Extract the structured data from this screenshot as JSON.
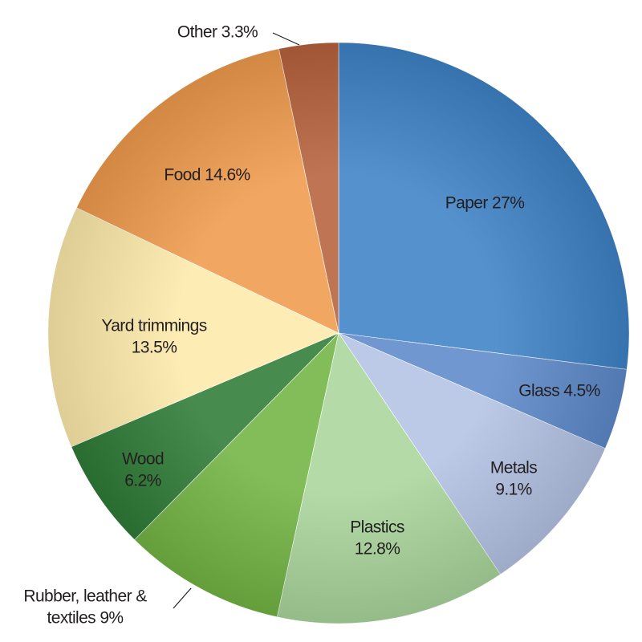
{
  "chart_data": {
    "type": "pie",
    "categories": [
      "Paper",
      "Glass",
      "Metals",
      "Plastics",
      "Rubber, leather & textiles",
      "Wood",
      "Yard trimmings",
      "Food",
      "Other"
    ],
    "values": [
      27,
      4.5,
      9.1,
      12.8,
      9,
      6.2,
      13.5,
      14.6,
      3.3
    ],
    "value_labels": [
      "27%",
      "4.5%",
      "9.1%",
      "12.8%",
      "9%",
      "6.2%",
      "13.5%",
      "14.6%",
      "3.3%"
    ],
    "colors": [
      "#3d82c6",
      "#5d89c9",
      "#b3c2e4",
      "#a9d59b",
      "#72b443",
      "#2f7b37",
      "#fdeaaa",
      "#ef9b4c",
      "#b6623c"
    ]
  }
}
